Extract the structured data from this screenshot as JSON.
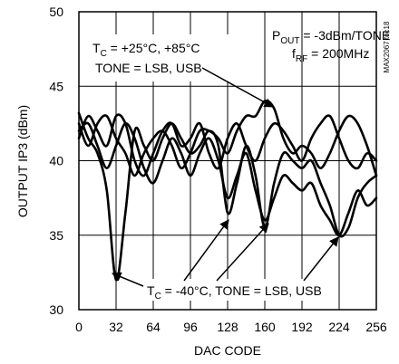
{
  "chart_data": {
    "type": "line",
    "xlabel": "DAC CODE",
    "ylabel": "OUTPUT IP3 (dBm)",
    "xlim": [
      0,
      256
    ],
    "ylim": [
      30,
      50
    ],
    "x_ticks": [
      "0",
      "32",
      "64",
      "96",
      "128",
      "160",
      "192",
      "224",
      "256"
    ],
    "y_ticks": [
      "30",
      "35",
      "40",
      "45",
      "50"
    ],
    "grid": true,
    "side_code": "MAX2067 toc18",
    "annotations": {
      "conditions": {
        "pout_main": "P",
        "pout_sub": "OUT",
        "pout_rest": " = -3dBm/TONE",
        "frf_main": "f",
        "frf_sub": "RF",
        "frf_rest": " = 200MHz"
      },
      "hot": {
        "t_main": "T",
        "t_sub": "C",
        "t_rest": " = +25°C, +85°C",
        "line2": "TONE = LSB, USB"
      },
      "cold": {
        "t_main": "T",
        "t_sub": "C",
        "t_rest": " = -40°C, TONE = LSB, USB"
      }
    },
    "series": [
      {
        "x": [
          0,
          8,
          16,
          24,
          32,
          40,
          48,
          56,
          64,
          72,
          80,
          88,
          96,
          104,
          112,
          120,
          128,
          136,
          144,
          152,
          160,
          168,
          176,
          184,
          192,
          200,
          208,
          216,
          224,
          232,
          240,
          248,
          256
        ],
        "values": [
          43.2,
          41.5,
          40.5,
          38.0,
          32.0,
          36.5,
          42.0,
          41.0,
          40.0,
          41.5,
          42.5,
          41.5,
          40.5,
          41.0,
          42.0,
          41.0,
          36.5,
          38.5,
          41.0,
          39.0,
          35.5,
          38.5,
          40.5,
          40.0,
          39.5,
          40.0,
          38.5,
          37.0,
          35.0,
          35.5,
          37.5,
          38.5,
          39.0
        ]
      },
      {
        "x": [
          0,
          8,
          16,
          24,
          32,
          40,
          48,
          56,
          64,
          72,
          80,
          88,
          96,
          104,
          112,
          120,
          128,
          136,
          144,
          152,
          160,
          168,
          176,
          184,
          192,
          200,
          208,
          216,
          224,
          232,
          240,
          248,
          256
        ],
        "values": [
          42.0,
          42.5,
          41.0,
          39.5,
          41.0,
          42.5,
          41.5,
          39.5,
          38.5,
          40.0,
          41.5,
          40.5,
          39.0,
          40.5,
          41.5,
          40.0,
          37.5,
          39.0,
          40.5,
          38.0,
          36.0,
          37.5,
          39.0,
          38.5,
          38.0,
          38.5,
          37.0,
          36.0,
          35.0,
          36.5,
          38.0,
          37.0,
          37.5
        ]
      },
      {
        "x": [
          0,
          8,
          16,
          24,
          32,
          40,
          48,
          56,
          64,
          72,
          80,
          88,
          96,
          104,
          112,
          120,
          128,
          136,
          144,
          152,
          160,
          168,
          176,
          184,
          192,
          200,
          208,
          216,
          224,
          232,
          240,
          248,
          256
        ],
        "values": [
          42.5,
          41.0,
          42.5,
          43.0,
          41.5,
          40.5,
          39.0,
          40.5,
          41.5,
          42.0,
          41.0,
          39.5,
          40.5,
          42.0,
          42.0,
          41.5,
          40.5,
          42.0,
          43.0,
          43.0,
          44.0,
          43.5,
          41.5,
          40.5,
          41.0,
          40.5,
          39.5,
          40.5,
          42.0,
          43.0,
          42.5,
          41.0,
          39.0
        ]
      },
      {
        "x": [
          0,
          8,
          16,
          24,
          32,
          40,
          48,
          56,
          64,
          72,
          80,
          88,
          96,
          104,
          112,
          120,
          128,
          136,
          144,
          152,
          160,
          168,
          176,
          184,
          192,
          200,
          208,
          216,
          224,
          232,
          240,
          248,
          256
        ],
        "values": [
          41.5,
          43.0,
          42.0,
          41.0,
          43.0,
          42.5,
          40.0,
          39.0,
          40.5,
          42.0,
          42.5,
          41.0,
          41.5,
          42.5,
          40.5,
          39.5,
          41.5,
          42.5,
          41.0,
          40.0,
          41.5,
          42.5,
          42.0,
          41.0,
          40.0,
          41.5,
          42.5,
          43.0,
          41.5,
          40.0,
          39.5,
          40.5,
          40.0
        ]
      }
    ]
  }
}
